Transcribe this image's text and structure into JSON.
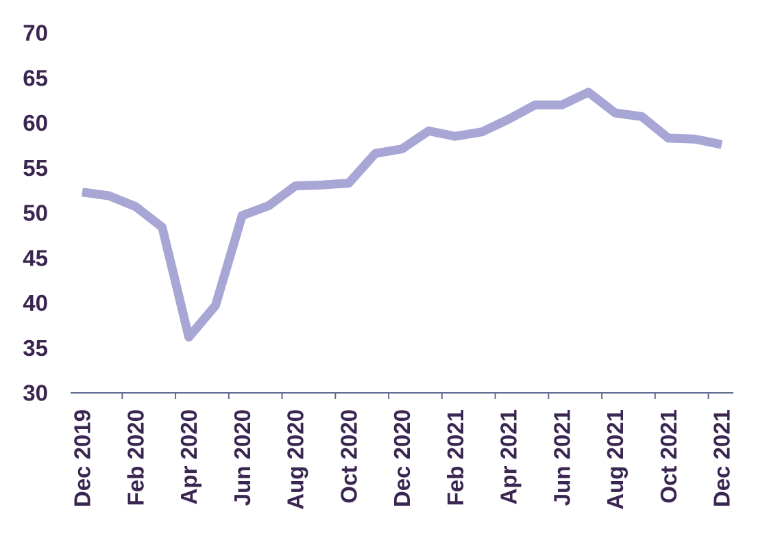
{
  "chart_data": {
    "type": "line",
    "x": [
      "Dec 2019",
      "Jan 2020",
      "Feb 2020",
      "Mar 2020",
      "Apr 2020",
      "May 2020",
      "Jun 2020",
      "Jul 2020",
      "Aug 2020",
      "Sep 2020",
      "Oct 2020",
      "Nov 2020",
      "Dec 2020",
      "Jan 2021",
      "Feb 2021",
      "Mar 2021",
      "Apr 2021",
      "May 2021",
      "Jun 2021",
      "Jul 2021",
      "Aug 2021",
      "Sep 2021",
      "Oct 2021",
      "Nov 2021",
      "Dec 2021"
    ],
    "x_tick_labels": [
      "Dec 2019",
      "Feb 2020",
      "Apr 2020",
      "Jun 2020",
      "Aug 2020",
      "Oct 2020",
      "Dec 2020",
      "Feb 2021",
      "Apr 2021",
      "Jun 2021",
      "Aug 2021",
      "Oct 2021",
      "Dec 2021"
    ],
    "series": [
      {
        "values": [
          52.3,
          51.9,
          50.7,
          48.4,
          36.2,
          39.7,
          49.7,
          50.8,
          53.0,
          53.1,
          53.3,
          56.6,
          57.1,
          59.1,
          58.5,
          59.0,
          60.4,
          62.0,
          62.0,
          63.4,
          61.1,
          60.7,
          58.3,
          58.2,
          57.6
        ]
      }
    ],
    "yticks": [
      30,
      35,
      40,
      45,
      50,
      55,
      60,
      65,
      70
    ],
    "ylim": [
      30,
      70
    ],
    "xlabel": "",
    "ylabel": "",
    "title": "",
    "grid": false,
    "colors": {
      "line": "#a8a6d4",
      "text": "#3a2650",
      "axis": "#5f6b8f"
    }
  }
}
